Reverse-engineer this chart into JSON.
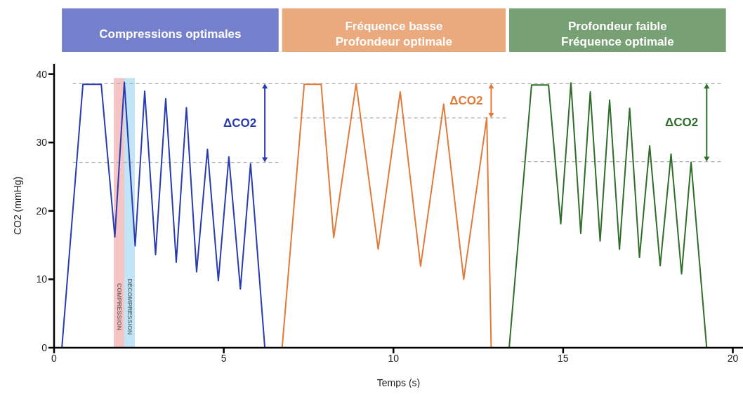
{
  "chart_data": {
    "type": "line",
    "xlabel": "Temps (s)",
    "ylabel": "CO2 (mmHg)",
    "xlim": [
      0,
      20.3
    ],
    "ylim": [
      0,
      41.5
    ],
    "xticks": [
      0,
      5,
      10,
      15,
      20
    ],
    "yticks": [
      0,
      10,
      20,
      30,
      40
    ],
    "grid": false,
    "legend": false,
    "marker": "none",
    "line_style": "solid",
    "series": [
      {
        "color": "#2a3bb0",
        "x": [
          0.23,
          0.85,
          1.39,
          1.79,
          2.07,
          2.39,
          2.67,
          2.99,
          3.29,
          3.6,
          3.9,
          4.2,
          4.52,
          4.84,
          5.15,
          5.49,
          5.79,
          6.21
        ],
        "values": [
          0,
          38.5,
          38.5,
          16.2,
          38.8,
          14.9,
          37.5,
          13.6,
          36.4,
          12.5,
          35.1,
          11.1,
          29,
          9.8,
          27.9,
          8.6,
          26.9,
          0
        ]
      },
      {
        "color": "#e07b39",
        "x": [
          6.72,
          7.37,
          7.87,
          8.24,
          8.9,
          9.55,
          10.2,
          10.8,
          11.48,
          12.07,
          12.75,
          12.88
        ],
        "values": [
          0,
          38.5,
          38.5,
          16.1,
          38.6,
          14.4,
          37.4,
          11.9,
          35.6,
          10,
          33.6,
          0
        ]
      },
      {
        "color": "#2e6e2a",
        "x": [
          13.41,
          14.07,
          14.57,
          14.93,
          15.23,
          15.52,
          15.8,
          16.09,
          16.37,
          16.66,
          16.96,
          17.25,
          17.55,
          17.86,
          18.18,
          18.49,
          18.77,
          19.23
        ],
        "values": [
          0,
          38.4,
          38.4,
          18.1,
          38.7,
          16.7,
          37.4,
          15.6,
          36.2,
          14.4,
          35,
          13.2,
          29.5,
          12,
          28.3,
          10.8,
          27.1,
          0
        ]
      }
    ],
    "ref_lines": [
      {
        "axis": "y",
        "value": 38.6,
        "color": "#aaaaaa",
        "line_style": "dashed"
      },
      {
        "axis": "y",
        "value": 27.1,
        "color": "#aaaaaa",
        "line_style": "dashed"
      },
      {
        "axis": "y",
        "value": 33.6,
        "color": "#aaaaaa",
        "line_style": "dashed"
      },
      {
        "axis": "y",
        "value": 27.2,
        "color": "#aaaaaa",
        "line_style": "dashed"
      }
    ],
    "bands": [
      {
        "axis": "x",
        "from": 1.76,
        "to": 2.07,
        "label": "COMPRESSION",
        "color": "#f5c4c4"
      },
      {
        "axis": "x",
        "from": 2.07,
        "to": 2.38,
        "label": "DÉCOMPRESSION",
        "color": "#c2e4f7"
      }
    ],
    "annotations": [
      "Compressions optimales",
      "Fréquence basse\nProfondeur optimale",
      "Profondeur faible\nFréquence optimale",
      "ΔCO2",
      "ΔCO2",
      "ΔCO2"
    ]
  }
}
